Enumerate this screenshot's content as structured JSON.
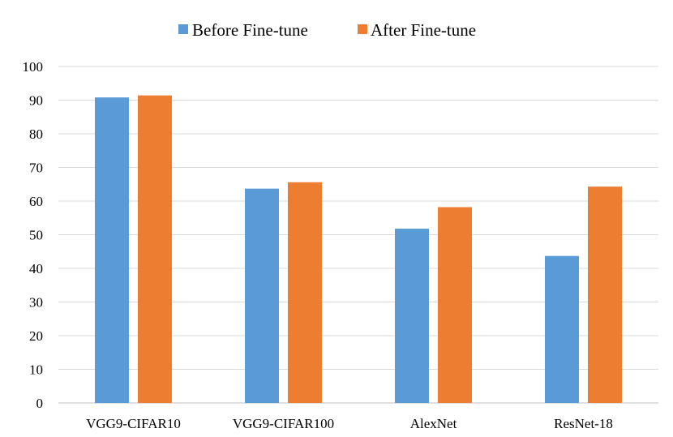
{
  "chart_data": {
    "type": "bar",
    "title": "",
    "xlabel": "",
    "ylabel": "",
    "categories": [
      "VGG9-CIFAR10",
      "VGG9-CIFAR100",
      "AlexNet",
      "ResNet-18"
    ],
    "series": [
      {
        "name": "Before Fine-tune",
        "color": "#5b9bd5",
        "values": [
          90.8,
          63.7,
          51.8,
          43.7
        ]
      },
      {
        "name": "After Fine-tune",
        "color": "#ed7d31",
        "values": [
          91.4,
          65.6,
          58.2,
          64.3
        ]
      }
    ],
    "ylim": [
      0,
      100
    ],
    "yticks": [
      0,
      10,
      20,
      30,
      40,
      50,
      60,
      70,
      80,
      90,
      100
    ],
    "grid": true,
    "legend_position": "top-center"
  }
}
